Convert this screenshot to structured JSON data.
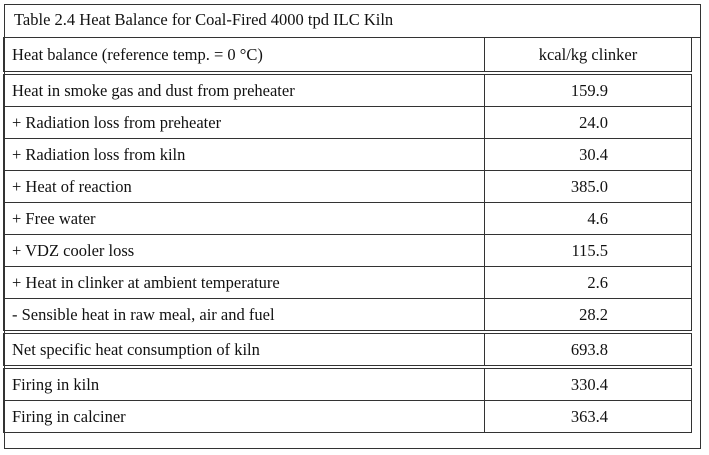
{
  "table": {
    "caption": "Table 2.4   Heat Balance for Coal-Fired 4000 tpd ILC Kiln",
    "header": {
      "label": "Heat balance (reference temp. = 0 °C)",
      "unit": "kcal/kg clinker"
    },
    "rows": [
      {
        "label": "Heat in smoke gas and dust from preheater",
        "value": "159.9"
      },
      {
        "label": "+ Radiation loss from preheater",
        "value": "24.0"
      },
      {
        "label": "+ Radiation loss from kiln",
        "value": "30.4"
      },
      {
        "label": "+ Heat of reaction",
        "value": "385.0"
      },
      {
        "label": "+ Free water",
        "value": "4.6"
      },
      {
        "label": "+ VDZ cooler loss",
        "value": "115.5"
      },
      {
        "label": "+ Heat in clinker at ambient temperature",
        "value": "2.6"
      },
      {
        "label": "- Sensible heat in raw meal, air and fuel",
        "value": "28.2"
      }
    ],
    "net": {
      "label": "Net specific heat consumption of kiln",
      "value": "693.8"
    },
    "firing": [
      {
        "label": "Firing in kiln",
        "value": "330.4"
      },
      {
        "label": "Firing in calciner",
        "value": "363.4"
      }
    ]
  }
}
